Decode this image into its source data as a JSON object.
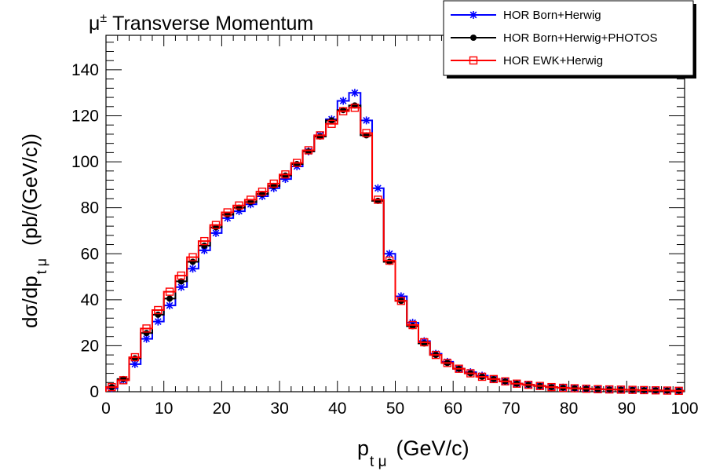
{
  "chart_data": {
    "type": "line",
    "title_prefix": "μ",
    "title_sup": "±",
    "title_rest": " Transverse Momentum",
    "ylabel_main": "dσ/dp",
    "ylabel_sub": "t μ",
    "ylabel_unit": "(pb/(GeV/c))",
    "xlabel_main": "p",
    "xlabel_sub": "t μ",
    "xlabel_unit": "(GeV/c)",
    "xlim": [
      0,
      100
    ],
    "ylim": [
      0,
      155
    ],
    "x_ticks": [
      0,
      10,
      20,
      30,
      40,
      50,
      60,
      70,
      80,
      90,
      100
    ],
    "y_ticks": [
      0,
      20,
      40,
      60,
      80,
      100,
      120,
      140
    ],
    "legend_position": "top-right",
    "bin_width": 2,
    "x": [
      1,
      3,
      5,
      7,
      9,
      11,
      13,
      15,
      17,
      19,
      21,
      23,
      25,
      27,
      29,
      31,
      33,
      35,
      37,
      39,
      41,
      43,
      45,
      47,
      49,
      51,
      53,
      55,
      57,
      59,
      61,
      63,
      65,
      67,
      69,
      71,
      73,
      75,
      77,
      79,
      81,
      83,
      85,
      87,
      89,
      91,
      93,
      95,
      97,
      99
    ],
    "series": [
      {
        "name": "HOR Born+Herwig",
        "color": "#0000ff",
        "marker": "star",
        "values": [
          1.5,
          5,
          12,
          23,
          30.5,
          37.5,
          45.5,
          53.5,
          61.5,
          69,
          75.5,
          78.5,
          81.5,
          85,
          88.5,
          92.5,
          98,
          104.5,
          111.5,
          118.5,
          126.5,
          130,
          118,
          88.5,
          60,
          41.5,
          30,
          22,
          16.5,
          13,
          10,
          8.5,
          7,
          5.5,
          4.5,
          3.5,
          3,
          2.5,
          2,
          1.8,
          1.5,
          1.3,
          1.2,
          1,
          0.9,
          0.8,
          0.7,
          0.6,
          0.5,
          0.4
        ]
      },
      {
        "name": "HOR Born+Herwig+PHOTOS",
        "color": "#000000",
        "marker": "circle",
        "values": [
          2,
          5.5,
          14.5,
          25.5,
          33.5,
          40.5,
          48,
          56.5,
          63.5,
          71.5,
          77,
          80,
          82.5,
          86,
          89.5,
          94,
          99,
          104.5,
          111,
          118,
          122.5,
          124.5,
          111.5,
          83,
          56.5,
          39.5,
          28.5,
          21,
          16,
          12.5,
          10,
          8,
          6.5,
          5.5,
          4.5,
          3.5,
          3,
          2.5,
          2,
          1.7,
          1.5,
          1.3,
          1.1,
          1,
          0.9,
          0.8,
          0.7,
          0.6,
          0.5,
          0.4
        ]
      },
      {
        "name": "HOR EWK+Herwig",
        "color": "#ff0000",
        "marker": "open-square",
        "values": [
          2,
          5,
          15,
          27.5,
          35.5,
          43.5,
          50.5,
          58.5,
          65.5,
          72.5,
          78,
          81,
          83.5,
          87,
          90.5,
          94.5,
          99.5,
          105,
          111.5,
          116.5,
          122,
          123.5,
          112.5,
          83.5,
          57,
          39.5,
          29,
          21.5,
          16,
          12.5,
          10,
          8,
          6.5,
          5.5,
          4.5,
          3.5,
          3,
          2.5,
          2,
          1.7,
          1.5,
          1.3,
          1.1,
          1,
          0.9,
          0.8,
          0.7,
          0.6,
          0.5,
          0.4
        ]
      }
    ]
  }
}
